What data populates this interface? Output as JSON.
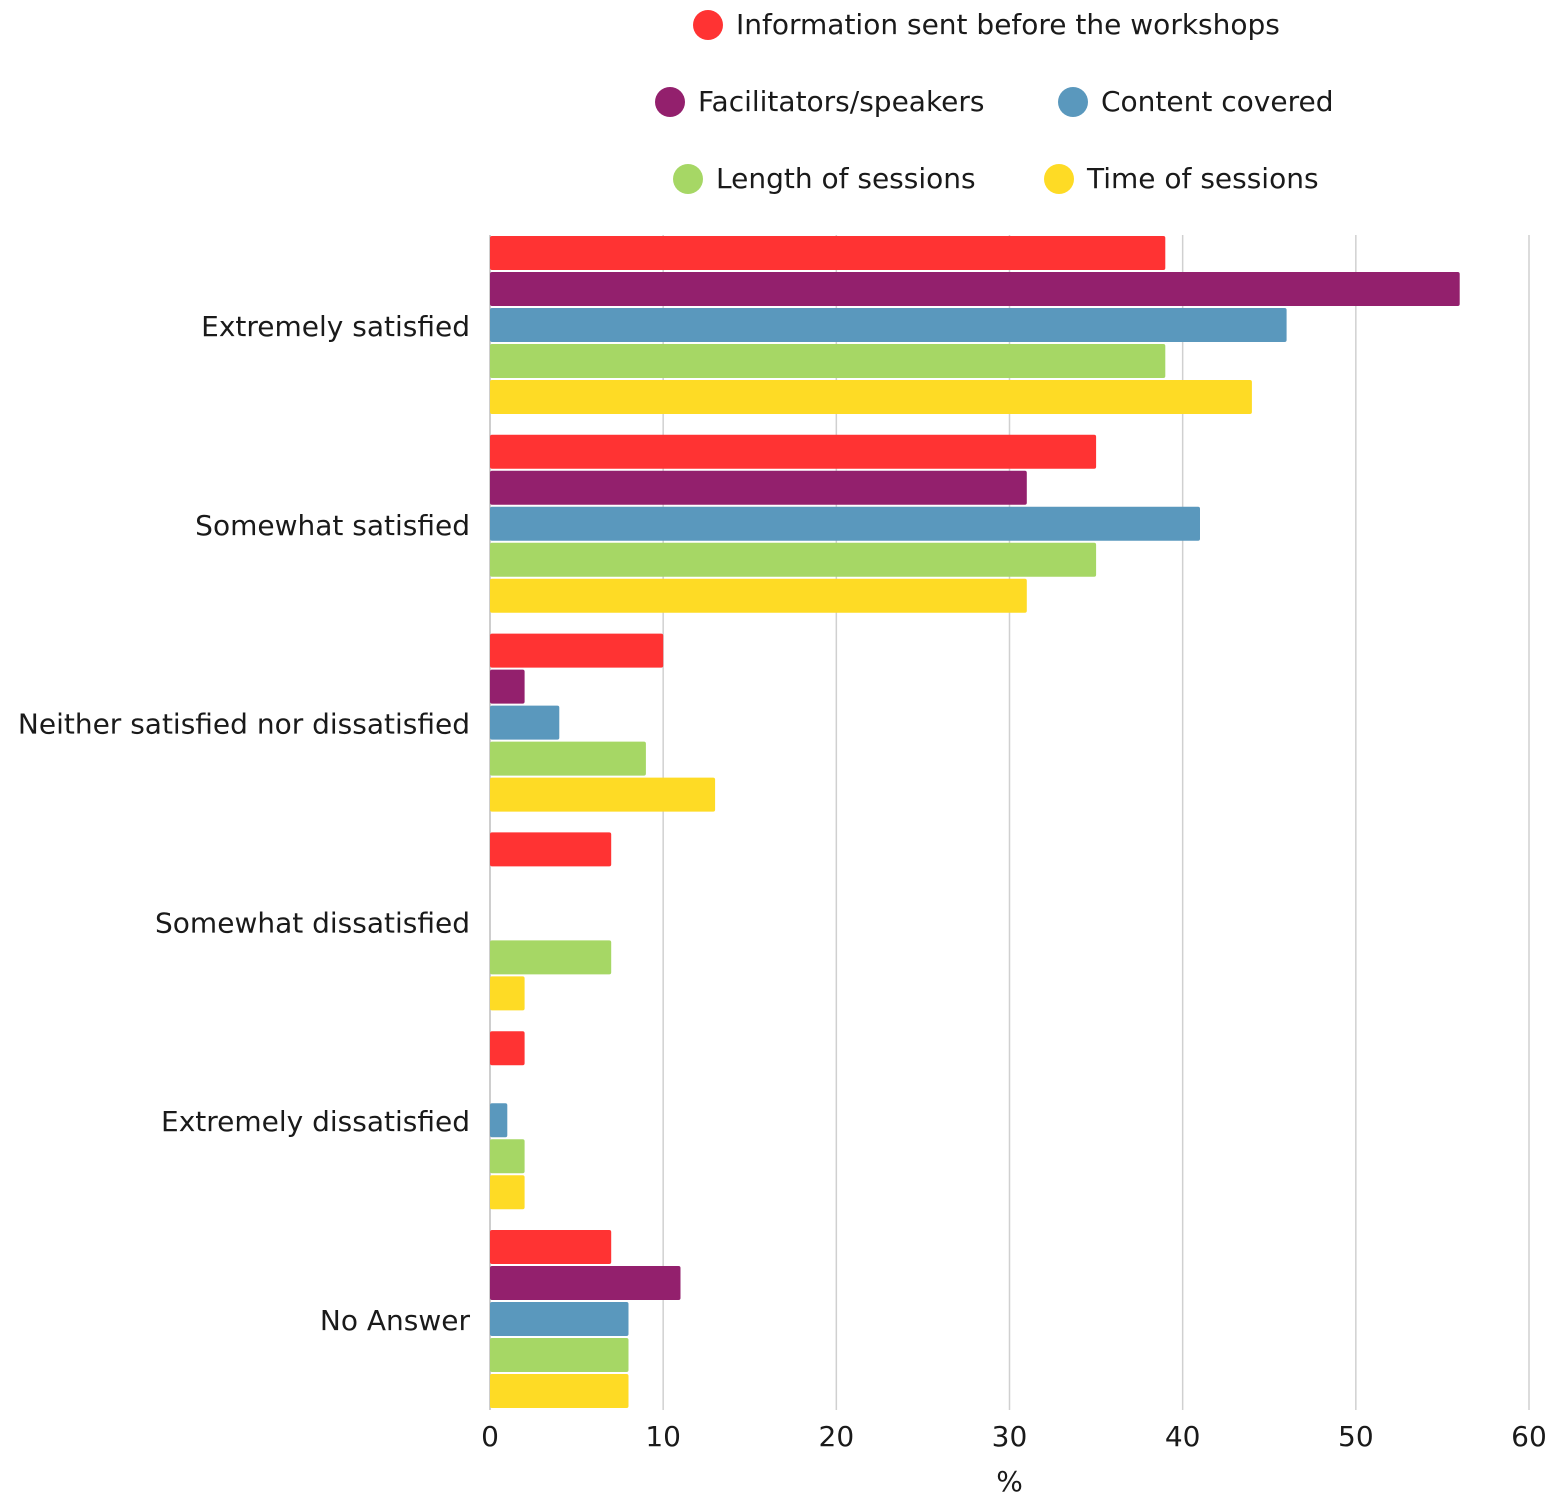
{
  "chart_data": {
    "type": "bar",
    "orientation": "horizontal",
    "categories": [
      "Extremely satisfied",
      "Somewhat satisfied",
      "Neither satisfied nor dissatisfied",
      "Somewhat dissatisfied",
      "Extremely dissatisfied",
      "No Answer"
    ],
    "series": [
      {
        "name": "Information sent before the workshops",
        "color": "#ff3333",
        "values": [
          39,
          35,
          10,
          7,
          2,
          7
        ]
      },
      {
        "name": "Facilitators/speakers",
        "color": "#93206d",
        "values": [
          56,
          31,
          2,
          0,
          0,
          11
        ]
      },
      {
        "name": "Content covered",
        "color": "#5a98bd",
        "values": [
          46,
          41,
          4,
          0,
          1,
          8
        ]
      },
      {
        "name": "Length of sessions",
        "color": "#a6d765",
        "values": [
          39,
          35,
          9,
          7,
          2,
          8
        ]
      },
      {
        "name": "Time of sessions",
        "color": "#fedb25",
        "values": [
          44,
          31,
          13,
          2,
          2,
          8
        ]
      }
    ],
    "title": "",
    "xlabel": "%",
    "ylabel": "",
    "xlim": [
      0,
      60
    ],
    "xticks": [
      "0",
      "10",
      "20",
      "30",
      "40",
      "50",
      "60"
    ],
    "grid": true,
    "legend_position": "top"
  }
}
